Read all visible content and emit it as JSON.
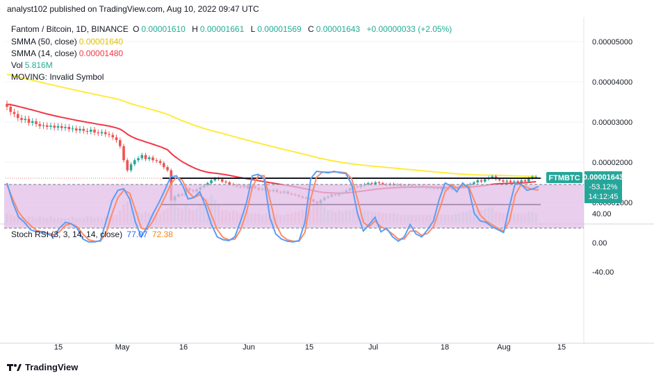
{
  "header": {
    "publisher": "analyst102 published on TradingView.com, Aug 10, 2022 09:47 UTC"
  },
  "legend": {
    "symbol": "Fantom / Bitcoin, 1D, BINANCE",
    "o_label": "O",
    "o_value": "0.00001610",
    "h_label": "H",
    "h_value": "0.00001661",
    "l_label": "L",
    "l_value": "0.00001569",
    "c_label": "C",
    "c_value": "0.00001643",
    "change": "+0.00000033 (+2.05%)",
    "smma50_label": "SMMA (50, close)",
    "smma50_value": "0.00001640",
    "smma14_label": "SMMA (14, close)",
    "smma14_value": "0.00001480",
    "vol_label": "Vol",
    "vol_value": "5.816M",
    "moving_label": "MOVING: Invalid Symbol",
    "stoch_label": "Stoch RSI (3, 3, 14, 14, close)",
    "stoch_k": "77.07",
    "stoch_d": "72.38"
  },
  "price_tag": {
    "ticker": "FTMBTC",
    "price": "0.00001643",
    "pct": "-53.12%",
    "countdown": "14:12:45"
  },
  "footer": {
    "brand": "TradingView"
  },
  "colors": {
    "up": "#26a69a",
    "down": "#ef5350",
    "smma50": "#ffeb3b",
    "smma14": "#f23645",
    "stoch_k": "#5b9cf6",
    "stoch_d": "#ff8a65",
    "stoch_band": "#e1bee7"
  },
  "chart_data": [
    {
      "type": "candlestick",
      "title": "Fantom / Bitcoin, 1D, BINANCE",
      "x_ticks": [
        "15",
        "May",
        "16",
        "Jun",
        "15",
        "Jul",
        "18",
        "Aug",
        "15"
      ],
      "y_ticks": [
        "0.00005000",
        "0.00004000",
        "0.00003000",
        "0.00002000",
        "0.00001000"
      ],
      "ylim": [
        6.5e-06,
        5.55e-05
      ],
      "close": [
        3.38e-05,
        3.25e-05,
        3.2e-05,
        3.1e-05,
        3.05e-05,
        3.08e-05,
        2.98e-05,
        3.02e-05,
        2.95e-05,
        2.9e-05,
        2.92e-05,
        2.88e-05,
        2.91e-05,
        2.86e-05,
        2.9e-05,
        2.85e-05,
        2.88e-05,
        2.82e-05,
        2.84e-05,
        2.79e-05,
        2.83e-05,
        2.78e-05,
        2.76e-05,
        2.81e-05,
        2.74e-05,
        2.72e-05,
        2.75e-05,
        2.7e-05,
        2.68e-05,
        2.62e-05,
        2.55e-05,
        2.4e-05,
        2.05e-05,
        1.8e-05,
        1.95e-05,
        2.05e-05,
        2.1e-05,
        2.18e-05,
        2.08e-05,
        2.12e-05,
        2.05e-05,
        2.03e-05,
        1.98e-05,
        1.88e-05,
        1.8e-05,
        1.05e-05,
        1.15e-05,
        1.2e-05,
        1.18e-05,
        1.35e-05,
        1.3e-05,
        1.28e-05,
        1.32e-05,
        1.38e-05,
        1.42e-05,
        1.48e-05,
        1.55e-05,
        1.6e-05,
        1.58e-05,
        1.52e-05,
        1.5e-05,
        1.45e-05,
        1.43e-05,
        1.4e-05,
        1.38e-05,
        1.42e-05,
        1.35e-05,
        1.4e-05,
        1.36e-05,
        1.32e-05,
        1.34e-05,
        1.3e-05,
        1.28e-05,
        1.31e-05,
        1.26e-05,
        1.24e-05,
        1.27e-05,
        1.22e-05,
        1.2e-05,
        1.18e-05,
        1.15e-05,
        1.12e-05,
        1.1e-05,
        1.08e-05,
        1.02e-05,
        9.8e-06,
        1.06e-05,
        1.12e-05,
        1.15e-05,
        1.2e-05,
        1.18e-05,
        1.22e-05,
        1.25e-05,
        1.3e-05,
        1.35e-05,
        1.4e-05,
        1.38e-05,
        1.42e-05,
        1.45e-05,
        1.48e-05,
        1.46e-05,
        1.5e-05,
        1.48e-05,
        1.45e-05,
        1.43e-05,
        1.46e-05,
        1.42e-05,
        1.44e-05,
        1.4e-05,
        1.42e-05,
        1.43e-05,
        1.4e-05,
        1.38e-05,
        1.41e-05,
        1.4e-05,
        1.36e-05,
        1.38e-05,
        1.35e-05,
        1.36e-05,
        1.34e-05,
        1.35e-05,
        1.33e-05,
        1.34e-05,
        1.36e-05,
        1.38e-05,
        1.4e-05,
        1.42e-05,
        1.46e-05,
        1.5e-05,
        1.55e-05,
        1.52e-05,
        1.58e-05,
        1.62e-05,
        1.65e-05,
        1.58e-05,
        1.55e-05,
        1.52e-05,
        1.54e-05,
        1.51e-05,
        1.53e-05,
        1.5e-05,
        1.55e-05,
        1.52e-05,
        1.6e-05,
        1.64e-05,
        1.64e-05
      ]
    },
    {
      "type": "bar",
      "name": "Vol",
      "last_value": "5.816M",
      "values": [
        6,
        5,
        4,
        5,
        4,
        3,
        4,
        4,
        3,
        4,
        3,
        3,
        4,
        3,
        3,
        3,
        3,
        3,
        4,
        3,
        3,
        3,
        4,
        4,
        3,
        4,
        3,
        4,
        4,
        5,
        5,
        8,
        12,
        14,
        9,
        8,
        7,
        6,
        7,
        6,
        6,
        6,
        6,
        8,
        9,
        26,
        18,
        10,
        9,
        12,
        9,
        8,
        9,
        12,
        13,
        16,
        18,
        15,
        11,
        8,
        8,
        7,
        8,
        7,
        6,
        7,
        7,
        6,
        6,
        6,
        5,
        6,
        5,
        5,
        6,
        5,
        5,
        6,
        6,
        7,
        7,
        8,
        8,
        9,
        12,
        13,
        11,
        10,
        8,
        8,
        7,
        8,
        7,
        8,
        8,
        9,
        8,
        7,
        8,
        8,
        7,
        7,
        7,
        6,
        6,
        6,
        6,
        6,
        5,
        5,
        5,
        5,
        5,
        5,
        5,
        5,
        5,
        5,
        5,
        5,
        5,
        5,
        5,
        6,
        6,
        7,
        7,
        8,
        8,
        9,
        8,
        9,
        10,
        10,
        7,
        7,
        6,
        6,
        6,
        6,
        6,
        6,
        6,
        7,
        7,
        6
      ]
    },
    {
      "type": "line",
      "title": "Stoch RSI (3, 3, 14, 14, close)",
      "y_ticks": [
        "80.00",
        "40.00",
        "0.00",
        "-40.00"
      ],
      "ylim": [
        -40,
        100
      ],
      "band": [
        20,
        80
      ],
      "series": [
        {
          "name": "77.07",
          "values": [
            82,
            55,
            35,
            28,
            18,
            15,
            15,
            12,
            8,
            20,
            28,
            26,
            20,
            5,
            1,
            1,
            3,
            30,
            58,
            72,
            74,
            60,
            28,
            8,
            22,
            40,
            55,
            72,
            90,
            92,
            80,
            60,
            62,
            70,
            50,
            25,
            8,
            4,
            3,
            8,
            30,
            55,
            92,
            94,
            88,
            35,
            12,
            5,
            2,
            1,
            3,
            28,
            88,
            98,
            97,
            96,
            98,
            96,
            95,
            80,
            40,
            16,
            25,
            35,
            15,
            20,
            8,
            2,
            8,
            25,
            12,
            8,
            18,
            30,
            60,
            82,
            78,
            70,
            82,
            75,
            40,
            30,
            28,
            22,
            18,
            14,
            50,
            82,
            80,
            72,
            74,
            77
          ]
        },
        {
          "name": "72.38",
          "values": [
            80,
            60,
            42,
            32,
            24,
            17,
            15,
            13,
            11,
            15,
            24,
            26,
            22,
            12,
            4,
            2,
            2,
            14,
            40,
            62,
            72,
            68,
            45,
            20,
            18,
            30,
            46,
            62,
            80,
            90,
            86,
            70,
            62,
            66,
            58,
            38,
            18,
            7,
            4,
            5,
            18,
            42,
            76,
            92,
            92,
            60,
            26,
            10,
            4,
            2,
            2,
            14,
            60,
            90,
            97,
            97,
            97,
            97,
            96,
            88,
            60,
            28,
            22,
            30,
            22,
            18,
            12,
            5,
            5,
            16,
            16,
            10,
            13,
            22,
            45,
            70,
            80,
            75,
            78,
            78,
            58,
            38,
            30,
            25,
            20,
            16,
            30,
            66,
            80,
            76,
            73,
            72.38
          ]
        }
      ]
    }
  ]
}
